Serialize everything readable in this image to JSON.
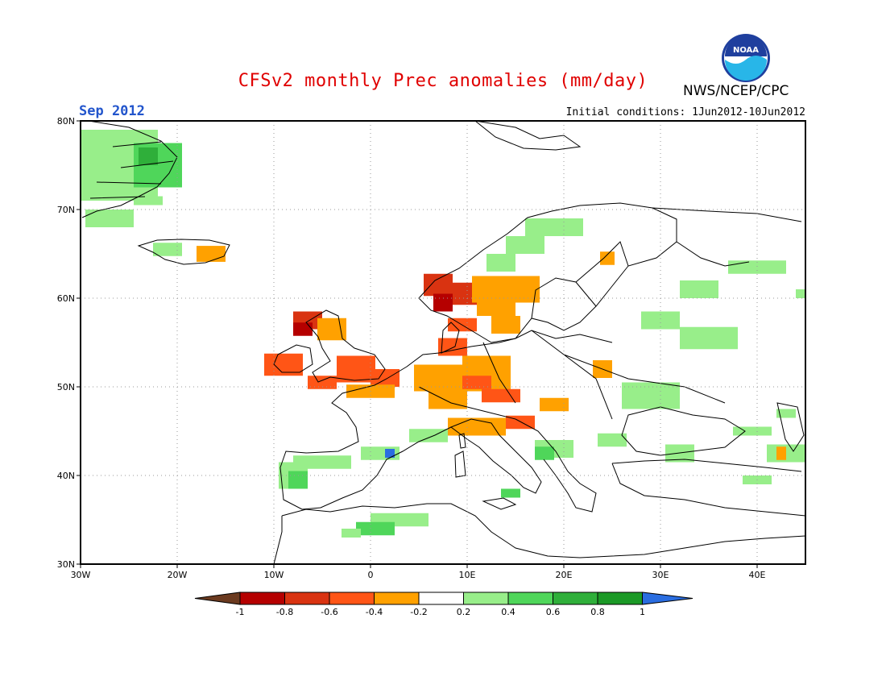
{
  "title": "CFSv2 monthly Prec anomalies (mm/day)",
  "period": "Sep 2012",
  "initial_conditions": "Initial conditions: 1Jun2012-10Jun2012",
  "agency": "NWS/NCEP/CPC",
  "logo_text": "NOAA",
  "map": {
    "lon_range": [
      -30,
      45
    ],
    "lat_range": [
      30,
      80
    ],
    "lon_ticks": [
      "30W",
      "20W",
      "10W",
      "0",
      "10E",
      "20E",
      "30E",
      "40E"
    ],
    "lat_ticks": [
      "30N",
      "40N",
      "50N",
      "60N",
      "70N",
      "80N"
    ],
    "grid": "dotted every 10 degrees"
  },
  "colorbar": {
    "labels": [
      "-1",
      "-0.8",
      "-0.6",
      "-0.4",
      "-0.2",
      "0.2",
      "0.4",
      "0.6",
      "0.8",
      "1"
    ],
    "colors": [
      "#6b3a1f",
      "#b50000",
      "#d93311",
      "#ff5516",
      "#ffa100",
      "#ffffff",
      "#98ee8a",
      "#4fd65a",
      "#2faf3a",
      "#1b9926",
      "#2a6de0"
    ]
  },
  "anomaly_cells": [
    {
      "lon": -26,
      "lat": 75,
      "w": 8,
      "h": 8,
      "v": 0.3
    },
    {
      "lon": -22,
      "lat": 75,
      "w": 5,
      "h": 5,
      "v": 0.5
    },
    {
      "lon": -23,
      "lat": 76,
      "w": 2,
      "h": 2,
      "v": 0.7
    },
    {
      "lon": -27,
      "lat": 69,
      "w": 5,
      "h": 2,
      "v": 0.3
    },
    {
      "lon": -23,
      "lat": 71,
      "w": 3,
      "h": 1,
      "v": 0.3
    },
    {
      "lon": -21,
      "lat": 65.5,
      "w": 3,
      "h": 1.5,
      "v": 0.3
    },
    {
      "lon": -16.5,
      "lat": 65,
      "w": 3,
      "h": 1.8,
      "v": -0.3
    },
    {
      "lon": 19,
      "lat": 68,
      "w": 6,
      "h": 2,
      "v": 0.3
    },
    {
      "lon": 16,
      "lat": 66,
      "w": 4,
      "h": 2,
      "v": 0.3
    },
    {
      "lon": 13.5,
      "lat": 64,
      "w": 3,
      "h": 2,
      "v": 0.3
    },
    {
      "lon": 7,
      "lat": 61.5,
      "w": 3,
      "h": 2.5,
      "v": -0.7
    },
    {
      "lon": 7.5,
      "lat": 59.5,
      "w": 2,
      "h": 2,
      "v": -0.9
    },
    {
      "lon": 10,
      "lat": 60.5,
      "w": 3,
      "h": 2.5,
      "v": -0.7
    },
    {
      "lon": 14,
      "lat": 61,
      "w": 7,
      "h": 3,
      "v": -0.3
    },
    {
      "lon": 13,
      "lat": 59,
      "w": 4,
      "h": 2,
      "v": -0.3
    },
    {
      "lon": 9.5,
      "lat": 57,
      "w": 3,
      "h": 1.5,
      "v": -0.5
    },
    {
      "lon": 14,
      "lat": 57,
      "w": 3,
      "h": 2,
      "v": -0.3
    },
    {
      "lon": 24.5,
      "lat": 64.5,
      "w": 1.5,
      "h": 1.5,
      "v": -0.3
    },
    {
      "lon": 30,
      "lat": 57.5,
      "w": 4,
      "h": 2,
      "v": 0.3
    },
    {
      "lon": 34,
      "lat": 61,
      "w": 4,
      "h": 2,
      "v": 0.3
    },
    {
      "lon": 40,
      "lat": 63.5,
      "w": 6,
      "h": 1.5,
      "v": 0.3
    },
    {
      "lon": 35,
      "lat": 55.5,
      "w": 6,
      "h": 2.5,
      "v": 0.3
    },
    {
      "lon": -6.5,
      "lat": 57.5,
      "w": 3,
      "h": 2,
      "v": -0.7
    },
    {
      "lon": -7,
      "lat": 56.5,
      "w": 2,
      "h": 1.5,
      "v": -0.9
    },
    {
      "lon": -4,
      "lat": 56.5,
      "w": 3,
      "h": 2.5,
      "v": -0.3
    },
    {
      "lon": -9,
      "lat": 52.5,
      "w": 4,
      "h": 2.5,
      "v": -0.5
    },
    {
      "lon": -1.5,
      "lat": 52,
      "w": 4,
      "h": 3,
      "v": -0.5
    },
    {
      "lon": 1.5,
      "lat": 51,
      "w": 3,
      "h": 2,
      "v": -0.5
    },
    {
      "lon": -5,
      "lat": 50.5,
      "w": 3,
      "h": 1.5,
      "v": -0.5
    },
    {
      "lon": 0,
      "lat": 49.5,
      "w": 5,
      "h": 1.5,
      "v": -0.3
    },
    {
      "lon": 7.5,
      "lat": 51,
      "w": 6,
      "h": 3,
      "v": -0.3
    },
    {
      "lon": 12,
      "lat": 51.5,
      "w": 5,
      "h": 4,
      "v": -0.3
    },
    {
      "lon": 11,
      "lat": 50.5,
      "w": 3,
      "h": 1.5,
      "v": -0.5
    },
    {
      "lon": 8.5,
      "lat": 54.5,
      "w": 3,
      "h": 2,
      "v": -0.5
    },
    {
      "lon": 13.5,
      "lat": 49,
      "w": 4,
      "h": 1.5,
      "v": -0.5
    },
    {
      "lon": 8,
      "lat": 48.5,
      "w": 4,
      "h": 2,
      "v": -0.3
    },
    {
      "lon": 11,
      "lat": 45.5,
      "w": 6,
      "h": 2,
      "v": -0.3
    },
    {
      "lon": 15.5,
      "lat": 46,
      "w": 3,
      "h": 1.5,
      "v": -0.5
    },
    {
      "lon": 19,
      "lat": 48,
      "w": 3,
      "h": 1.5,
      "v": -0.3
    },
    {
      "lon": 24,
      "lat": 52,
      "w": 2,
      "h": 2,
      "v": -0.3
    },
    {
      "lon": 6,
      "lat": 44.5,
      "w": 4,
      "h": 1.5,
      "v": 0.3
    },
    {
      "lon": 1,
      "lat": 42.5,
      "w": 4,
      "h": 1.5,
      "v": 0.3
    },
    {
      "lon": 2,
      "lat": 42.5,
      "w": 1,
      "h": 1,
      "v": 1.1
    },
    {
      "lon": -5,
      "lat": 41.5,
      "w": 6,
      "h": 1.5,
      "v": 0.3
    },
    {
      "lon": -8,
      "lat": 40,
      "w": 3,
      "h": 3,
      "v": 0.3
    },
    {
      "lon": -7.5,
      "lat": 39.5,
      "w": 2,
      "h": 2,
      "v": 0.5
    },
    {
      "lon": 3,
      "lat": 35,
      "w": 6,
      "h": 1.5,
      "v": 0.3
    },
    {
      "lon": 0.5,
      "lat": 34,
      "w": 4,
      "h": 1.5,
      "v": 0.5
    },
    {
      "lon": -2,
      "lat": 33.5,
      "w": 2,
      "h": 1,
      "v": 0.3
    },
    {
      "lon": 19,
      "lat": 43,
      "w": 4,
      "h": 2,
      "v": 0.3
    },
    {
      "lon": 18,
      "lat": 42.5,
      "w": 2,
      "h": 1.5,
      "v": 0.5
    },
    {
      "lon": 14.5,
      "lat": 38,
      "w": 2,
      "h": 1,
      "v": 0.5
    },
    {
      "lon": 25,
      "lat": 44,
      "w": 3,
      "h": 1.5,
      "v": 0.3
    },
    {
      "lon": 29,
      "lat": 49,
      "w": 6,
      "h": 3,
      "v": 0.3
    },
    {
      "lon": 32,
      "lat": 42.5,
      "w": 3,
      "h": 2,
      "v": 0.3
    },
    {
      "lon": 40,
      "lat": 39.5,
      "w": 3,
      "h": 1,
      "v": 0.3
    },
    {
      "lon": 43,
      "lat": 42.5,
      "w": 4,
      "h": 2,
      "v": 0.3
    },
    {
      "lon": 42.5,
      "lat": 42.5,
      "w": 1,
      "h": 1.5,
      "v": -0.3
    },
    {
      "lon": 44.5,
      "lat": 60.5,
      "w": 1,
      "h": 1,
      "v": 0.3
    },
    {
      "lon": 39.5,
      "lat": 45,
      "w": 4,
      "h": 1,
      "v": 0.3
    },
    {
      "lon": 43,
      "lat": 47,
      "w": 2,
      "h": 1,
      "v": 0.3
    }
  ]
}
